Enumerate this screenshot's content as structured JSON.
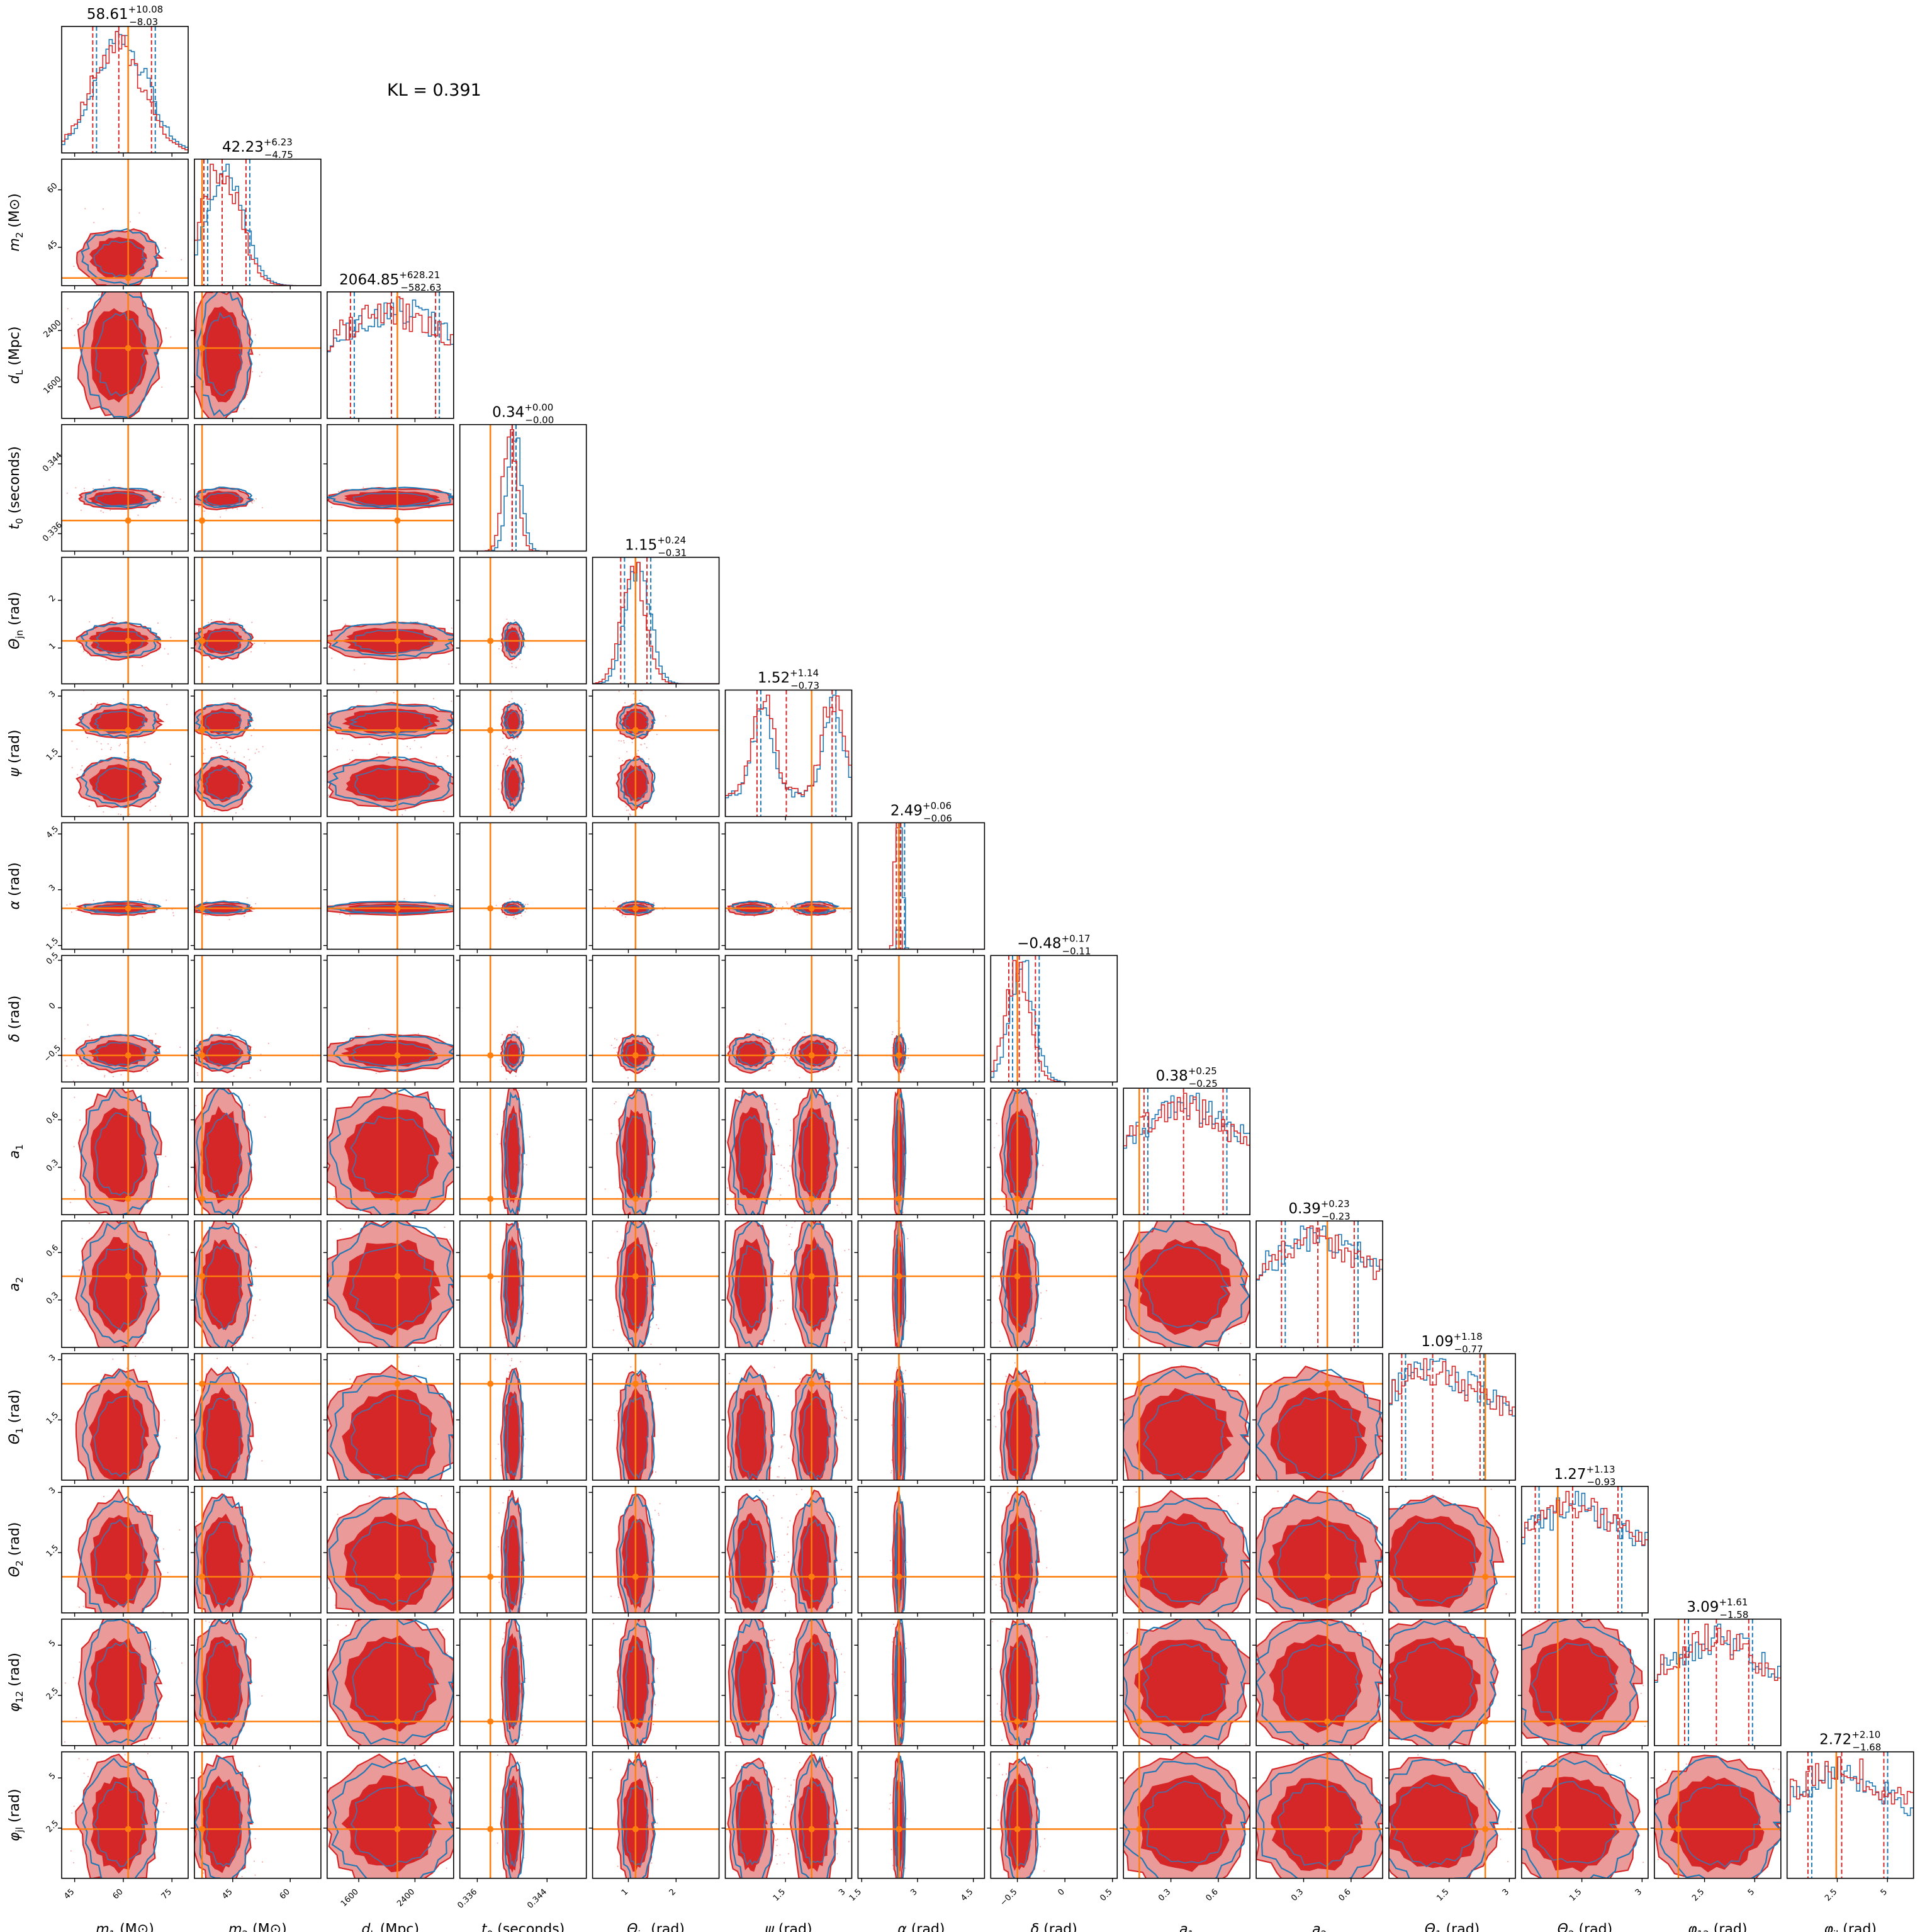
{
  "annotation": {
    "text": "KL = 0.391"
  },
  "colors": {
    "posterior_a": "#d62728",
    "posterior_b": "#1f77b4",
    "truth": "#ff7f0e",
    "fill_light": "#eb9a9a"
  },
  "chart_data": {
    "type": "corner",
    "grid": false,
    "legend": "none",
    "parameters": [
      {
        "id": "m1",
        "label": "m_1 (M⊙)",
        "summary": {
          "median": "58.61",
          "plus": "10.08",
          "minus": "8.03"
        },
        "range": [
          41,
          80
        ],
        "ticks": [
          45,
          60,
          75
        ],
        "truth": 61.5
      },
      {
        "id": "m2",
        "label": "m_2 (M⊙)",
        "summary": {
          "median": "42.23",
          "plus": "6.23",
          "minus": "4.75"
        },
        "range": [
          35,
          68
        ],
        "ticks": [
          45,
          60
        ],
        "truth": 37.0
      },
      {
        "id": "dL",
        "label": "d_L (Mpc)",
        "summary": {
          "median": "2064.85",
          "plus": "628.21",
          "minus": "582.63"
        },
        "range": [
          1150,
          2950
        ],
        "ticks": [
          1600,
          2400
        ],
        "truth": 2150
      },
      {
        "id": "t0",
        "label": "t_0 (seconds)",
        "summary": {
          "median": "0.34",
          "plus": "0.00",
          "minus": "0.00"
        },
        "range": [
          0.334,
          0.3485
        ],
        "ticks": [
          0.336,
          0.344
        ],
        "truth": 0.3375
      },
      {
        "id": "theta_jn",
        "label": "Θ_jn (rad)",
        "summary": {
          "median": "1.15",
          "plus": "0.24",
          "minus": "0.31"
        },
        "range": [
          0.25,
          2.9
        ],
        "ticks": [
          1,
          2
        ],
        "truth": 1.15
      },
      {
        "id": "psi",
        "label": "ψ (rad)",
        "summary": {
          "median": "1.52",
          "plus": "1.14",
          "minus": "0.73"
        },
        "range": [
          0,
          3.15
        ],
        "ticks": [
          1.5,
          3.0
        ],
        "truth": 2.15
      },
      {
        "id": "alpha",
        "label": "α (rad)",
        "summary": {
          "median": "2.49",
          "plus": "0.06",
          "minus": "0.06"
        },
        "range": [
          1.4,
          4.8
        ],
        "ticks": [
          1.5,
          3.0,
          4.5
        ],
        "truth": 2.5
      },
      {
        "id": "delta",
        "label": "δ (rad)",
        "summary": {
          "median": "−0.48",
          "plus": "0.17",
          "minus": "0.11"
        },
        "range": [
          -0.78,
          0.55
        ],
        "ticks": [
          -0.5,
          0.0,
          0.5
        ],
        "truth": -0.5
      },
      {
        "id": "a1",
        "label": "a_1",
        "summary": {
          "median": "0.38",
          "plus": "0.25",
          "minus": "0.25"
        },
        "range": [
          0,
          0.8
        ],
        "ticks": [
          0.3,
          0.6
        ],
        "truth": 0.1
      },
      {
        "id": "a2",
        "label": "a_2",
        "summary": {
          "median": "0.39",
          "plus": "0.23",
          "minus": "0.23"
        },
        "range": [
          0,
          0.8
        ],
        "ticks": [
          0.3,
          0.6
        ],
        "truth": 0.45
      },
      {
        "id": "theta1",
        "label": "Θ_1 (rad)",
        "summary": {
          "median": "1.09",
          "plus": "1.18",
          "minus": "0.77"
        },
        "range": [
          0,
          3.15
        ],
        "ticks": [
          1.5,
          3.0
        ],
        "truth": 2.4
      },
      {
        "id": "theta2",
        "label": "Θ_2 (rad)",
        "summary": {
          "median": "1.27",
          "plus": "1.13",
          "minus": "0.93"
        },
        "range": [
          0,
          3.15
        ],
        "ticks": [
          1.5,
          3.0
        ],
        "truth": 0.9
      },
      {
        "id": "phi12",
        "label": "φ_12 (rad)",
        "summary": {
          "median": "3.09",
          "plus": "1.61",
          "minus": "1.58"
        },
        "range": [
          0,
          6.3
        ],
        "ticks": [
          2.5,
          5.0
        ],
        "truth": 1.2
      },
      {
        "id": "phijl",
        "label": "φ_jl (rad)",
        "summary": {
          "median": "2.72",
          "plus": "2.10",
          "minus": "1.68"
        },
        "range": [
          0,
          6.3
        ],
        "ticks": [
          2.5,
          5.0
        ],
        "truth": 2.45
      }
    ],
    "ytick_overrides": {
      "m2": [
        45,
        60
      ],
      "dL": [
        1600,
        2400
      ],
      "t0": [
        0.336,
        0.344
      ],
      "theta_jn": [
        1,
        2
      ],
      "psi": [
        1.5,
        3.0
      ],
      "alpha": [
        1.5,
        3.0,
        4.5
      ],
      "delta": [
        -0.5,
        0.0,
        0.5
      ],
      "a1": [
        0.3,
        0.6
      ],
      "a2": [
        0.3,
        0.6
      ],
      "theta1": [
        1.5,
        3.0
      ],
      "theta2": [
        1.5,
        3.0
      ],
      "phi12": [
        2.5,
        5.0
      ],
      "phijl": [
        2.5,
        5.0
      ]
    }
  }
}
